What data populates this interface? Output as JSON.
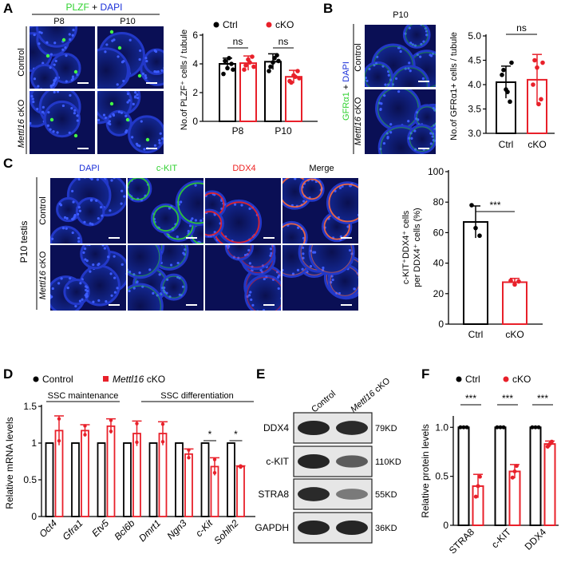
{
  "colors": {
    "control": "#000000",
    "cko": "#e8202a",
    "dapi": "#1a2fd8",
    "green": "#2fd12f",
    "red": "#ee2222",
    "tissue_bg": "#0a0f55"
  },
  "panelA": {
    "letter": "A",
    "stain_plzf": "PLZF",
    "stain_plus": " + ",
    "stain_dapi": "DAPI",
    "col1": "P8",
    "col2": "P10",
    "row1": "Control",
    "row2_gene": "Mettl16",
    "row2_suffix": " cKO"
  },
  "panelB": {
    "letter": "B",
    "col": "P10",
    "stain_green": "GFRα1",
    "stain_plus": " + ",
    "stain_dapi": "DAPI",
    "row1": "Control",
    "row2_gene": "Mettl16",
    "row2_suffix": " cKO"
  },
  "panelC": {
    "letter": "C",
    "cols": [
      "DAPI",
      "c-KIT",
      "DDX4",
      "Merge"
    ],
    "side_label": "P10 testis",
    "row1": "Control",
    "row2_gene": "Mettl16",
    "row2_suffix": " cKO"
  },
  "panelD": {
    "letter": "D",
    "legend_control": "Control",
    "legend_cko_gene": "Mettl16",
    "legend_cko_suffix": " cKO",
    "group1": "SSC maintenance",
    "group2": "SSC differentiation"
  },
  "panelE": {
    "letter": "E",
    "lane1": "Control",
    "lane2_gene": "Mettl16",
    "lane2_suffix": " cKO",
    "proteins": [
      "DDX4",
      "c-KIT",
      "STRA8",
      "GAPDH"
    ],
    "sizes": [
      "79KD",
      "110KD",
      "55KD",
      "36KD"
    ]
  },
  "panelF": {
    "letter": "F"
  },
  "chart_data": [
    {
      "panel": "A",
      "type": "bar",
      "categories": [
        "P8",
        "P10"
      ],
      "series": [
        {
          "name": "Ctrl",
          "values": [
            4.0,
            4.15
          ],
          "errors": [
            0.4,
            0.55
          ],
          "points": [
            [
              3.3,
              3.7,
              4.0,
              4.2,
              4.4,
              3.6
            ],
            [
              3.5,
              4.1,
              4.6,
              3.8,
              4.4,
              4.2
            ]
          ]
        },
        {
          "name": "cKO",
          "values": [
            4.05,
            3.1
          ],
          "errors": [
            0.5,
            0.45
          ],
          "points": [
            [
              3.6,
              4.3,
              4.5,
              3.9,
              4.1,
              3.8
            ],
            [
              2.8,
              3.2,
              3.5,
              2.7,
              3.1,
              3.0
            ]
          ]
        }
      ],
      "ylabel": "No.of PLZF⁺ cells / tubule",
      "ylim": [
        0,
        6
      ],
      "yticks": [
        "0",
        "2",
        "4",
        "6"
      ],
      "significance": [
        "ns",
        "ns"
      ]
    },
    {
      "panel": "B",
      "type": "bar",
      "categories": [
        "Ctrl",
        "cKO"
      ],
      "values": [
        4.05,
        4.1
      ],
      "errors": [
        0.33,
        0.52
      ],
      "points": [
        [
          4.2,
          3.9,
          3.65,
          4.3,
          3.85,
          4.45
        ],
        [
          4.0,
          4.35,
          3.7,
          4.5,
          3.6,
          4.45
        ]
      ],
      "ylabel": "No.of GFRα1+ cells / tubule",
      "ylim": [
        3.0,
        5.0
      ],
      "yticks": [
        "3.0",
        "3.5",
        "4.0",
        "4.5",
        "5.0"
      ],
      "significance": [
        "ns"
      ]
    },
    {
      "panel": "C",
      "type": "bar",
      "categories": [
        "Ctrl",
        "cKO"
      ],
      "values": [
        67,
        27.5
      ],
      "errors": [
        10.5,
        2.5
      ],
      "points": [
        [
          78,
          63,
          58
        ],
        [
          28.5,
          26,
          28
        ]
      ],
      "ylabel_line1": "c-KIT⁺DDX4⁺ cells",
      "ylabel_line2": "per DDX4⁺ cells (%)",
      "ylim": [
        0,
        100
      ],
      "yticks": [
        "0",
        "20",
        "40",
        "60",
        "80",
        "100"
      ],
      "significance": [
        "***"
      ]
    },
    {
      "panel": "D",
      "type": "bar",
      "categories": [
        "Oct4",
        "Gfra1",
        "Etv5",
        "Bcl6b",
        "Dmrt1",
        "Ngn3",
        "c-Kit",
        "Sohlh2"
      ],
      "series": [
        {
          "name": "Control",
          "values": [
            1,
            1,
            1,
            1,
            1,
            1,
            1,
            1
          ]
        },
        {
          "name": "Mettl16 cKO",
          "values": [
            1.17,
            1.17,
            1.23,
            1.13,
            1.13,
            0.85,
            0.68,
            0.68
          ],
          "errors": [
            0.2,
            0.08,
            0.1,
            0.17,
            0.16,
            0.07,
            0.12,
            0.01
          ]
        }
      ],
      "ylabel": "Relative mRNA levels",
      "ylim": [
        0,
        1.5
      ],
      "yticks": [
        "0",
        "0.5",
        "1",
        "1.5"
      ],
      "significance_labels": {
        "c-Kit": "*",
        "Sohlh2": "*"
      }
    },
    {
      "panel": "F",
      "type": "bar",
      "categories": [
        "STRA8",
        "c-KIT",
        "DDX4"
      ],
      "series": [
        {
          "name": "Ctrl",
          "values": [
            1,
            1,
            1
          ]
        },
        {
          "name": "cKO",
          "values": [
            0.4,
            0.55,
            0.83
          ],
          "errors": [
            0.12,
            0.07,
            0.03
          ]
        }
      ],
      "ylabel": "Relative protein levels",
      "ylim": [
        0,
        1.1
      ],
      "yticks": [
        "0",
        "0.5",
        "1.0"
      ],
      "significance": [
        "***",
        "***",
        "***"
      ]
    }
  ]
}
